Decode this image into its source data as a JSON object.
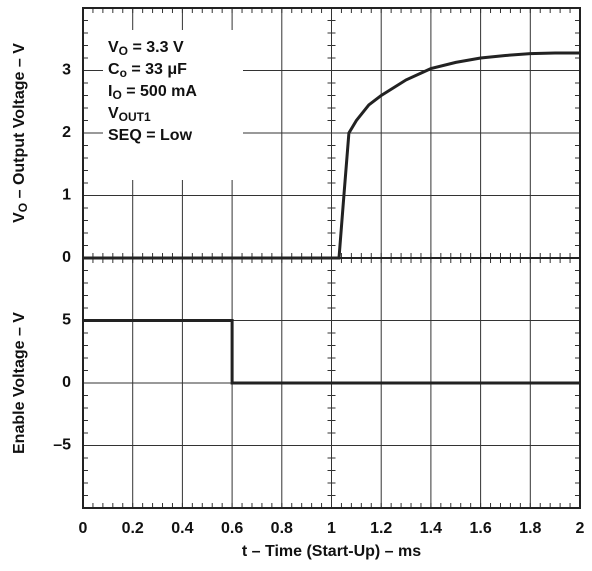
{
  "chart_data": [
    {
      "type": "line",
      "ylabel": {
        "text": "V",
        "sub": "O",
        "tail": " – Output Voltage – V"
      },
      "annotations": [
        {
          "text": "V",
          "sub": "O",
          "tail": " = 3.3 V"
        },
        {
          "text": "C",
          "sub": "o",
          "tail": " = 33 μF"
        },
        {
          "text": "I",
          "sub": "O",
          "tail": " = 500 mA"
        },
        {
          "text": "V",
          "sub": "OUT1"
        },
        {
          "text": "SEQ = Low"
        }
      ],
      "x": [
        0,
        1.03,
        1.05,
        1.07,
        1.1,
        1.15,
        1.2,
        1.3,
        1.4,
        1.5,
        1.6,
        1.7,
        1.8,
        1.9,
        2.0
      ],
      "values": [
        0,
        0,
        1.0,
        2.0,
        2.2,
        2.45,
        2.6,
        2.85,
        3.03,
        3.13,
        3.2,
        3.24,
        3.27,
        3.28,
        3.28
      ],
      "color": "#222222",
      "xlim": [
        0,
        2
      ],
      "xticks": [
        0,
        0.2,
        0.4,
        0.6,
        0.8,
        1,
        1.2,
        1.4,
        1.6,
        1.8,
        2
      ],
      "ylim": [
        0,
        4
      ],
      "yticks": [
        0,
        1,
        2,
        3
      ],
      "grid": true
    },
    {
      "type": "line",
      "ylabel": {
        "text": "Enable Voltage – V"
      },
      "xlabel": "t – Time (Start-Up) – ms",
      "x": [
        0,
        0.6,
        0.6,
        2
      ],
      "values": [
        5,
        5,
        0,
        0
      ],
      "color": "#222222",
      "xlim": [
        0,
        2
      ],
      "xticks": [
        0,
        0.2,
        0.4,
        0.6,
        0.8,
        1,
        1.2,
        1.4,
        1.6,
        1.8,
        2
      ],
      "ylim": [
        -10,
        10
      ],
      "yticks": [
        5,
        0,
        {
          "value": -5,
          "label": "–5"
        }
      ],
      "grid": true
    }
  ]
}
